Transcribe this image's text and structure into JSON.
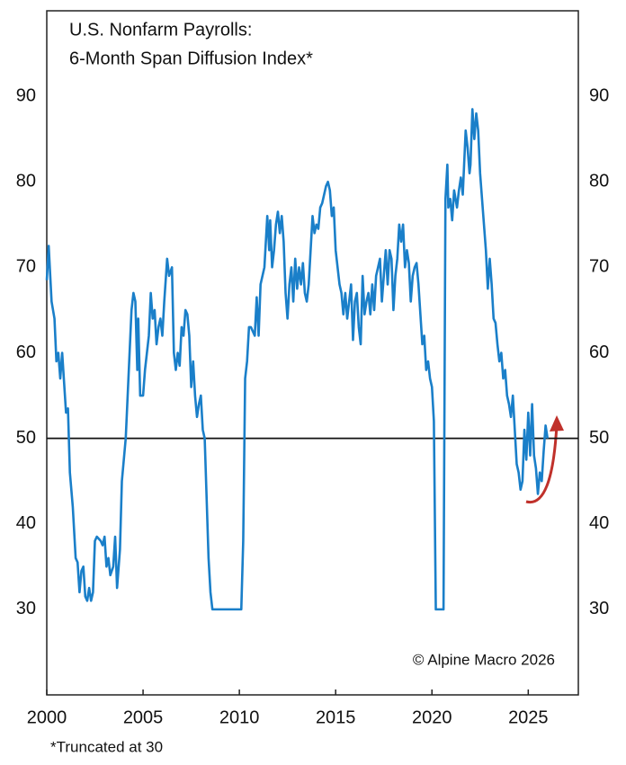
{
  "chart_data": {
    "type": "line",
    "title": "U.S. Nonfarm Payrolls:",
    "subtitle": "6-Month Span Diffusion Index*",
    "annotation": "© Alpine Macro 2026",
    "footnote": "*Truncated at 30",
    "color": "#1a7fc9",
    "hline": 50,
    "x": [
      2000.0,
      2000.1,
      2000.25,
      2000.4,
      2000.5,
      2000.6,
      2000.7,
      2000.8,
      2001.0,
      2001.1,
      2001.2,
      2001.35,
      2001.5,
      2001.6,
      2001.7,
      2001.8,
      2001.9,
      2002.0,
      2002.1,
      2002.2,
      2002.3,
      2002.4,
      2002.5,
      2002.6,
      2002.8,
      2002.9,
      2003.0,
      2003.1,
      2003.2,
      2003.3,
      2003.45,
      2003.55,
      2003.65,
      2003.8,
      2003.9,
      2004.1,
      2004.3,
      2004.4,
      2004.5,
      2004.6,
      2004.7,
      2004.75,
      2004.85,
      2005.0,
      2005.1,
      2005.3,
      2005.4,
      2005.5,
      2005.6,
      2005.7,
      2005.8,
      2005.9,
      2006.0,
      2006.1,
      2006.25,
      2006.35,
      2006.5,
      2006.6,
      2006.7,
      2006.8,
      2006.9,
      2007.0,
      2007.1,
      2007.2,
      2007.3,
      2007.4,
      2007.5,
      2007.6,
      2007.7,
      2007.8,
      2007.9,
      2008.0,
      2008.1,
      2008.2,
      2008.3,
      2008.4,
      2008.5,
      2008.6,
      2009.0,
      2010.0,
      2010.1,
      2010.2,
      2010.3,
      2010.4,
      2010.5,
      2010.6,
      2010.8,
      2010.9,
      2011.0,
      2011.1,
      2011.3,
      2011.45,
      2011.55,
      2011.6,
      2011.7,
      2011.8,
      2011.9,
      2012.0,
      2012.1,
      2012.2,
      2012.3,
      2012.4,
      2012.5,
      2012.6,
      2012.7,
      2012.8,
      2012.9,
      2013.0,
      2013.1,
      2013.2,
      2013.3,
      2013.4,
      2013.5,
      2013.6,
      2013.7,
      2013.8,
      2013.9,
      2014.0,
      2014.1,
      2014.2,
      2014.3,
      2014.5,
      2014.6,
      2014.7,
      2014.8,
      2014.9,
      2015.0,
      2015.2,
      2015.3,
      2015.4,
      2015.5,
      2015.6,
      2015.8,
      2015.9,
      2016.0,
      2016.1,
      2016.2,
      2016.3,
      2016.4,
      2016.5,
      2016.6,
      2016.7,
      2016.8,
      2016.9,
      2017.0,
      2017.1,
      2017.3,
      2017.4,
      2017.5,
      2017.6,
      2017.7,
      2017.8,
      2017.9,
      2018.0,
      2018.1,
      2018.2,
      2018.3,
      2018.4,
      2018.5,
      2018.6,
      2018.7,
      2018.8,
      2018.9,
      2019.0,
      2019.1,
      2019.2,
      2019.3,
      2019.4,
      2019.5,
      2019.6,
      2019.7,
      2019.8,
      2019.9,
      2020.0,
      2020.1,
      2020.2,
      2020.5,
      2020.6,
      2020.7,
      2020.8,
      2020.85,
      2020.95,
      2021.05,
      2021.15,
      2021.3,
      2021.4,
      2021.5,
      2021.6,
      2021.75,
      2021.85,
      2021.95,
      2022.0,
      2022.1,
      2022.2,
      2022.3,
      2022.4,
      2022.5,
      2022.6,
      2022.8,
      2022.9,
      2023.0,
      2023.1,
      2023.2,
      2023.3,
      2023.4,
      2023.5,
      2023.6,
      2023.7,
      2023.8,
      2023.9,
      2024.0,
      2024.1,
      2024.2,
      2024.3,
      2024.4,
      2024.5,
      2024.6,
      2024.7,
      2024.8,
      2024.9,
      2025.0,
      2025.1,
      2025.2,
      2025.3,
      2025.4,
      2025.5,
      2025.6,
      2025.7,
      2025.8,
      2025.9,
      2026.0
    ],
    "values": [
      68.5,
      72.5,
      66,
      64,
      59,
      60,
      57,
      60,
      53,
      53.5,
      46,
      42,
      36,
      35.5,
      32,
      34.5,
      35,
      31.5,
      31,
      32.5,
      31,
      32,
      38,
      38.5,
      38,
      37.5,
      38.5,
      35,
      36,
      34,
      35,
      38.5,
      32.5,
      37,
      45,
      50,
      60,
      65,
      67,
      66,
      58,
      64,
      55,
      55,
      58,
      62,
      67,
      64,
      65,
      61,
      63,
      64,
      62,
      66,
      71,
      69,
      70,
      60,
      58,
      60,
      58.5,
      63,
      62,
      65,
      64.5,
      62,
      56,
      59,
      55,
      52.5,
      54,
      55,
      51,
      50,
      43,
      36,
      32,
      30,
      30,
      30,
      30,
      38,
      57,
      59,
      63,
      63,
      62,
      66.5,
      62,
      68,
      70,
      76,
      72,
      75.5,
      70,
      72,
      75,
      76.5,
      74,
      76,
      73,
      67,
      64,
      68,
      70,
      66,
      71,
      67.5,
      70,
      68,
      70.5,
      67,
      66,
      68,
      72,
      76,
      74,
      75,
      74.5,
      77,
      77.5,
      79.5,
      80,
      79,
      76,
      77,
      72,
      68,
      67,
      64.5,
      67,
      64,
      68,
      61.5,
      66,
      67,
      63,
      61,
      69,
      64.5,
      66,
      67,
      64.5,
      68,
      65,
      69,
      71,
      66,
      69,
      72,
      68,
      72,
      71,
      65,
      69,
      71,
      75,
      73,
      75,
      70,
      72,
      70.5,
      66,
      69,
      70,
      70.5,
      68,
      64.5,
      61,
      62,
      58,
      59,
      57,
      56,
      52,
      30,
      30,
      30,
      78,
      82,
      77,
      78,
      75.5,
      79,
      77,
      79,
      80.5,
      78.5,
      86,
      84,
      81,
      82,
      88.5,
      85,
      88,
      86,
      81,
      78,
      72,
      67.5,
      71,
      68,
      64,
      63.5,
      61,
      59,
      60,
      57,
      58,
      55,
      54,
      52.5,
      55,
      51,
      47,
      46,
      44,
      45,
      51,
      47.5,
      53,
      48,
      54,
      48,
      46.5,
      43.5,
      46,
      45,
      48.5,
      51.5,
      50
    ],
    "xlim": [
      2000,
      2027.6
    ],
    "xticks": [
      2000,
      2005,
      2010,
      2015,
      2020,
      2025
    ],
    "ylim": [
      20,
      100
    ],
    "yticks": [
      30,
      40,
      50,
      60,
      70,
      80,
      90
    ],
    "y2lim": [
      20,
      100
    ],
    "y2ticks": [
      30,
      40,
      50,
      60,
      70,
      80,
      90
    ]
  }
}
